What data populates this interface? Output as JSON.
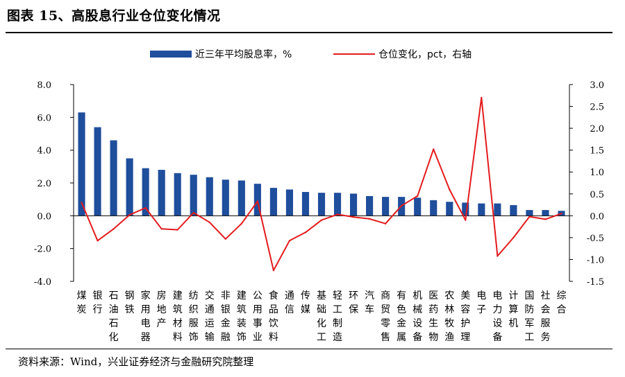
{
  "title": "图表 15、高股息行业仓位变化情况",
  "source": "资料来源：Wind，兴业证券经济与金融研究院整理",
  "colors": {
    "bar": "#1f4e9c",
    "line": "#e31a1c",
    "axis": "#000000"
  },
  "chart_data": {
    "type": "bar",
    "categories": [
      "煤炭",
      "银行",
      "石油石化",
      "钢铁",
      "家用电器",
      "房地产",
      "建筑材料",
      "纺织服饰",
      "交通运输",
      "非银金融",
      "建筑装饰",
      "公用事业",
      "食品饮料",
      "通信",
      "传媒",
      "基础化工",
      "轻工制造",
      "环保",
      "汽车",
      "商贸零售",
      "有色金属",
      "机械设备",
      "医药生物",
      "农林牧渔",
      "美容护理",
      "电子",
      "电力设备",
      "计算机",
      "国防军工",
      "社会服务",
      "综合"
    ],
    "series": [
      {
        "name": "近三年平均股息率，%",
        "type": "bar",
        "axis": "left",
        "values": [
          6.3,
          5.4,
          4.6,
          3.5,
          2.9,
          2.8,
          2.6,
          2.5,
          2.35,
          2.2,
          2.15,
          1.95,
          1.7,
          1.6,
          1.45,
          1.4,
          1.4,
          1.35,
          1.2,
          1.15,
          1.15,
          1.1,
          0.95,
          0.85,
          0.8,
          0.75,
          0.75,
          0.65,
          0.35,
          0.35,
          0.3
        ]
      },
      {
        "name": "仓位变化，pct，右轴",
        "type": "line",
        "axis": "right",
        "values": [
          0.3,
          -0.57,
          -0.3,
          0.02,
          0.18,
          -0.3,
          -0.32,
          0.07,
          -0.15,
          -0.53,
          -0.18,
          0.33,
          -1.25,
          -0.57,
          -0.38,
          -0.1,
          0.03,
          -0.03,
          -0.07,
          -0.18,
          0.23,
          0.45,
          1.52,
          0.6,
          -0.1,
          2.7,
          -0.92,
          -0.5,
          -0.02,
          -0.08,
          0.05
        ]
      }
    ],
    "ylim_left": [
      -4.0,
      8.0
    ],
    "yticks_left": [
      "8.0",
      "6.0",
      "4.0",
      "2.0",
      "0.0",
      "-2.0",
      "-4.0"
    ],
    "ylim_right": [
      -1.5,
      3.0
    ],
    "yticks_right": [
      "3.0",
      "2.5",
      "2.0",
      "1.5",
      "1.0",
      "0.5",
      "0.0",
      "-0.5",
      "-1.0",
      "-1.5"
    ],
    "legend_position": "top"
  }
}
